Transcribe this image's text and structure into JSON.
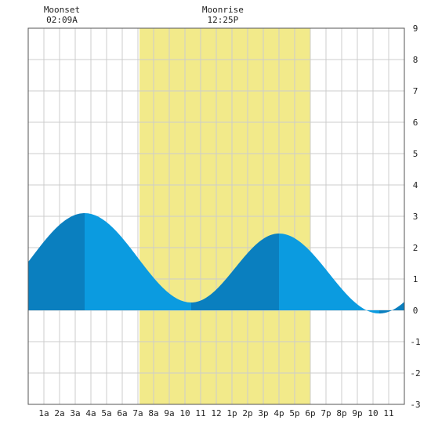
{
  "chart_data": {
    "type": "area",
    "title": "",
    "xlabel": "",
    "ylabel": "",
    "xlim": [
      0,
      24
    ],
    "ylim": [
      -3,
      9
    ],
    "x_tick_labels": [
      "1a",
      "2a",
      "3a",
      "4a",
      "5a",
      "6a",
      "7a",
      "8a",
      "9a",
      "10",
      "11",
      "12",
      "1p",
      "2p",
      "3p",
      "4p",
      "5p",
      "6p",
      "7p",
      "8p",
      "9p",
      "10",
      "11"
    ],
    "y_ticks": [
      "-3",
      "-2",
      "-1",
      "0",
      "1",
      "2",
      "3",
      "4",
      "5",
      "6",
      "7",
      "8",
      "9"
    ],
    "daylight_start": 7.1,
    "daylight_end": 18.0,
    "annotations": [
      {
        "label": "Moonset",
        "time": "02:09A",
        "hour": 2.15
      },
      {
        "label": "Moonrise",
        "time": "12:25P",
        "hour": 12.42
      }
    ],
    "tide_extremes": [
      {
        "hour": 3.6,
        "height": 3.1
      },
      {
        "hour": 10.4,
        "height": 0.25
      },
      {
        "hour": 16.0,
        "height": 2.45
      },
      {
        "hour": 22.4,
        "height": -0.1
      }
    ],
    "start_height": 1.2,
    "end_height": 0.4,
    "colors": {
      "daylight": "#f2ea8a",
      "tide_rising": "#0a7fbf",
      "tide_falling": "#0b9be0",
      "grid": "#cccccc",
      "frame": "#555555"
    }
  }
}
